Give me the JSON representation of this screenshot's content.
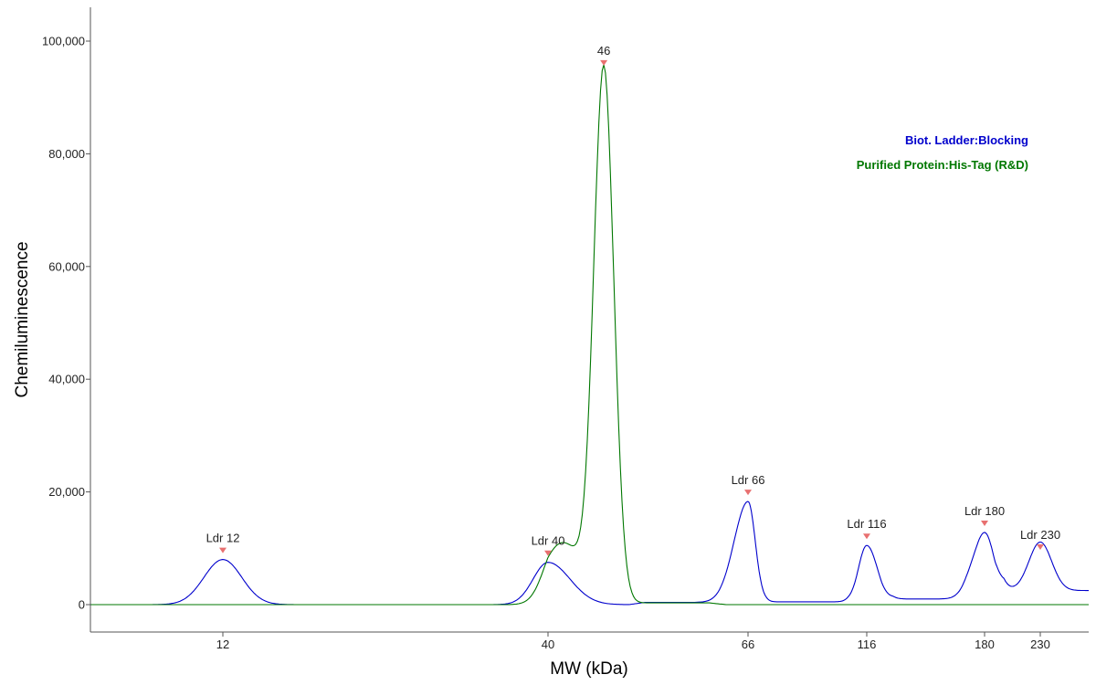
{
  "chart_data": {
    "type": "line",
    "xlabel": "MW (kDa)",
    "ylabel": "Chemiluminescence",
    "ylim": [
      -5000,
      106000
    ],
    "x_scale": "molecular-weight (log-like), ladder tick positions",
    "y_ticks": [
      {
        "value": 0,
        "label": "0"
      },
      {
        "value": 20000,
        "label": "20,000"
      },
      {
        "value": 40000,
        "label": "40,000"
      },
      {
        "value": 60000,
        "label": "60,000"
      },
      {
        "value": 80000,
        "label": "80,000"
      },
      {
        "value": 100000,
        "label": "100,000"
      }
    ],
    "x_ticks": [
      {
        "value": 12,
        "label": "12"
      },
      {
        "value": 40,
        "label": "40"
      },
      {
        "value": 66,
        "label": "66"
      },
      {
        "value": 116,
        "label": "116"
      },
      {
        "value": 180,
        "label": "180"
      },
      {
        "value": 230,
        "label": "230"
      }
    ],
    "x_range_kda": [
      7,
      290
    ],
    "legend_position": "top-right",
    "grid": false,
    "series": [
      {
        "name": "Biot. Ladder:Blocking",
        "color": "#0000cc",
        "baseline": 0,
        "peaks": [
          {
            "x": 12,
            "y": 8000,
            "width": 0.07,
            "label": "Ldr 12"
          },
          {
            "x": 40,
            "y": 7500,
            "width": 0.055,
            "label": "Ldr 40"
          },
          {
            "x": 66,
            "y": 18300,
            "width": 0.035,
            "label": "Ldr 66"
          },
          {
            "x": 116,
            "y": 10500,
            "width": 0.04,
            "label": "Ldr 116"
          },
          {
            "x": 180,
            "y": 12800,
            "width": 0.045,
            "label": "Ldr 180"
          },
          {
            "x": 230,
            "y": 8600,
            "width": 0.05,
            "label": "Ldr 230"
          }
        ],
        "plateaus": [
          {
            "from": 51,
            "to": 62,
            "y": 400
          },
          {
            "from": 72,
            "to": 106,
            "y": 500
          },
          {
            "from": 128,
            "to": 168,
            "y": 1000
          },
          {
            "from": 196,
            "to": 290,
            "y": 2500
          }
        ]
      },
      {
        "name": "Purified Protein:His-Tag (R&D)",
        "color": "#007700",
        "baseline": 0,
        "peaks": [
          {
            "x": 46,
            "y": 94500,
            "width": 0.025,
            "label": "46"
          },
          {
            "x": 41.5,
            "y": 11000,
            "width": 0.05,
            "label": ""
          }
        ],
        "plateaus": [
          {
            "from": 49,
            "to": 60,
            "y": 300
          }
        ]
      }
    ],
    "markers": [
      {
        "x": 12,
        "y": 8000,
        "label": "Ldr 12"
      },
      {
        "x": 40,
        "y": 7500,
        "label": "Ldr 40"
      },
      {
        "x": 46,
        "y": 94500,
        "label": "46"
      },
      {
        "x": 66,
        "y": 18300,
        "label": "Ldr 66"
      },
      {
        "x": 116,
        "y": 10500,
        "label": "Ldr 116"
      },
      {
        "x": 180,
        "y": 12800,
        "label": "Ldr 180"
      },
      {
        "x": 230,
        "y": 8600,
        "label": "Ldr 230"
      }
    ],
    "marker_color": "#e87070"
  }
}
